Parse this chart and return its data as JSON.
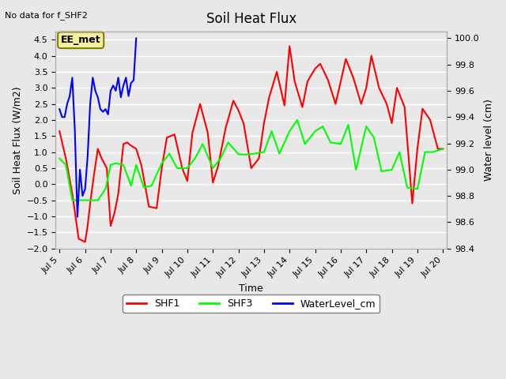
{
  "title": "Soil Heat Flux",
  "top_left_text": "No data for f_SHF2",
  "annotation_text": "EE_met",
  "xlabel": "Time",
  "ylabel_left": "Soil Heat Flux (W/m2)",
  "ylabel_right": "Water level (cm)",
  "ylim_left": [
    -2.0,
    4.75
  ],
  "ylim_right": [
    98.4,
    100.05
  ],
  "yticks_left": [
    -2.0,
    -1.5,
    -1.0,
    -0.5,
    0.0,
    0.5,
    1.0,
    1.5,
    2.0,
    2.5,
    3.0,
    3.5,
    4.0,
    4.5
  ],
  "yticks_right": [
    98.4,
    98.6,
    98.8,
    99.0,
    99.2,
    99.4,
    99.6,
    99.8,
    100.0
  ],
  "background_color": "#e8e8e8",
  "axes_facecolor": "#e8e8e8",
  "grid_color": "#ffffff",
  "shf1_color": "red",
  "shf3_color": "lime",
  "wl_color": "blue",
  "legend_entries": [
    "SHF1",
    "SHF3",
    "WaterLevel_cm"
  ],
  "xtick_labels": [
    "Jul 5",
    "Jul 6",
    "Jul 7",
    "Jul 8",
    "Jul 9",
    "Jul 10",
    "Jul 11",
    "Jul 12",
    "Jul 13",
    "Jul 14",
    "Jul 15",
    "Jul 16",
    "Jul 17",
    "Jul 18",
    "Jul 19",
    "Jul 20"
  ],
  "shf1_x": [
    5,
    5.25,
    5.5,
    5.75,
    6.0,
    6.1,
    6.2,
    6.35,
    6.5,
    6.65,
    6.85,
    7.0,
    7.15,
    7.3,
    7.5,
    7.65,
    7.8,
    8.0,
    8.2,
    8.5,
    8.8,
    9.0,
    9.2,
    9.5,
    9.8,
    10.0,
    10.2,
    10.5,
    10.8,
    11.0,
    11.2,
    11.5,
    11.8,
    12.0,
    12.2,
    12.5,
    12.8,
    13.0,
    13.2,
    13.5,
    13.8,
    14.0,
    14.2,
    14.5,
    14.7,
    15.0,
    15.2,
    15.5,
    15.8,
    16.0,
    16.2,
    16.5,
    16.8,
    17.0,
    17.2,
    17.5,
    17.8,
    18.0,
    18.2,
    18.5,
    18.8,
    19.0,
    19.2,
    19.5,
    19.8,
    20.0
  ],
  "shf1_y": [
    1.65,
    0.8,
    -0.3,
    -1.7,
    -1.8,
    -1.3,
    -0.6,
    0.3,
    1.1,
    0.8,
    0.5,
    -1.3,
    -0.9,
    -0.3,
    1.25,
    1.3,
    1.2,
    1.1,
    0.6,
    -0.7,
    -0.75,
    0.5,
    1.45,
    1.55,
    0.5,
    0.1,
    1.6,
    2.5,
    1.6,
    0.05,
    0.55,
    1.75,
    2.6,
    2.3,
    1.9,
    0.5,
    0.8,
    1.9,
    2.7,
    3.5,
    2.45,
    4.3,
    3.2,
    2.4,
    3.2,
    3.6,
    3.75,
    3.25,
    2.5,
    3.2,
    3.9,
    3.3,
    2.5,
    3.0,
    4.0,
    3.0,
    2.5,
    1.9,
    3.0,
    2.4,
    -0.6,
    1.1,
    2.35,
    2.0,
    1.1,
    1.1
  ],
  "shf3_x": [
    5,
    5.25,
    5.5,
    5.75,
    6.0,
    6.2,
    6.5,
    6.8,
    7.0,
    7.2,
    7.5,
    7.8,
    8.0,
    8.3,
    8.6,
    9.0,
    9.3,
    9.6,
    10.0,
    10.3,
    10.6,
    11.0,
    11.3,
    11.6,
    12.0,
    12.3,
    12.6,
    13.0,
    13.3,
    13.6,
    14.0,
    14.3,
    14.6,
    15.0,
    15.3,
    15.6,
    16.0,
    16.3,
    16.6,
    17.0,
    17.3,
    17.6,
    18.0,
    18.3,
    18.6,
    19.0,
    19.3,
    19.6,
    20.0
  ],
  "shf3_y": [
    0.8,
    0.6,
    -0.5,
    -0.5,
    -0.5,
    -0.5,
    -0.5,
    -0.15,
    0.6,
    0.65,
    0.6,
    -0.05,
    0.6,
    -0.1,
    -0.05,
    0.65,
    0.95,
    0.5,
    0.5,
    0.8,
    1.25,
    0.5,
    0.8,
    1.3,
    0.93,
    0.92,
    0.95,
    1.0,
    1.65,
    0.95,
    1.65,
    2.0,
    1.25,
    1.65,
    1.8,
    1.3,
    1.25,
    1.85,
    0.45,
    1.8,
    1.45,
    0.4,
    0.45,
    1.0,
    -0.1,
    -0.15,
    1.0,
    1.0,
    1.1
  ],
  "wl_x": [
    5,
    5.1,
    5.2,
    5.3,
    5.4,
    5.5,
    5.6,
    5.7,
    5.8,
    5.9,
    6.0,
    6.1,
    6.2,
    6.3,
    6.4,
    6.5,
    6.6,
    6.7,
    6.8,
    6.9,
    7.0,
    7.1,
    7.2,
    7.3,
    7.4,
    7.5,
    7.6,
    7.7,
    7.8,
    7.9,
    8.0
  ],
  "wl_y_raw": [
    99.46,
    99.4,
    99.4,
    99.5,
    99.56,
    99.7,
    99.3,
    98.64,
    99.0,
    98.8,
    98.85,
    99.1,
    99.5,
    99.7,
    99.6,
    99.55,
    99.46,
    99.44,
    99.46,
    99.42,
    99.6,
    99.64,
    99.6,
    99.7,
    99.55,
    99.64,
    99.7,
    99.56,
    99.66,
    99.68,
    100.0
  ]
}
